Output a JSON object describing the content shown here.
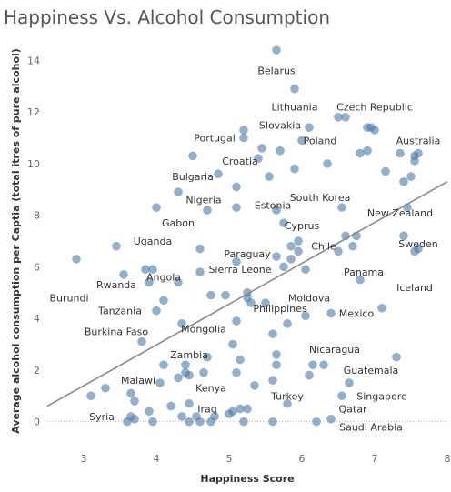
{
  "title": "Happiness Vs. Alcohol Consumption",
  "chart_data": {
    "type": "scatter",
    "title": "Happiness Vs. Alcohol Consumption",
    "xlabel": "Happiness Score",
    "ylabel": "Average alcohol consumption per Captia (total itres of pure alcohol)",
    "xlim": [
      2.5,
      8
    ],
    "ylim": [
      -1,
      15
    ],
    "xticks": [
      "3",
      "4",
      "5",
      "6",
      "7",
      "8"
    ],
    "yticks": [
      "0",
      "2",
      "4",
      "6",
      "8",
      "10",
      "12",
      "14"
    ],
    "grid": false,
    "point_color": "#4e79a7",
    "trendline": {
      "x": [
        2.5,
        8
      ],
      "y": [
        0.6,
        9.3
      ]
    },
    "points": [
      [
        2.9,
        6.3
      ],
      [
        3.1,
        1.0
      ],
      [
        3.3,
        1.3
      ],
      [
        3.45,
        6.8
      ],
      [
        3.55,
        5.7
      ],
      [
        3.6,
        0.0
      ],
      [
        3.65,
        0.2
      ],
      [
        3.7,
        0.8
      ],
      [
        3.65,
        1.1
      ],
      [
        3.7,
        0.1
      ],
      [
        3.8,
        3.1
      ],
      [
        3.85,
        5.9
      ],
      [
        3.9,
        0.4
      ],
      [
        3.9,
        5.4
      ],
      [
        3.95,
        5.9
      ],
      [
        3.95,
        0.0
      ],
      [
        4.0,
        4.3
      ],
      [
        4.0,
        8.3
      ],
      [
        4.05,
        1.5
      ],
      [
        4.1,
        2.2
      ],
      [
        4.1,
        4.7
      ],
      [
        4.2,
        0.6
      ],
      [
        4.3,
        1.7
      ],
      [
        4.3,
        8.9
      ],
      [
        4.3,
        5.4
      ],
      [
        4.35,
        3.8
      ],
      [
        4.35,
        0.2
      ],
      [
        4.4,
        1.9
      ],
      [
        4.4,
        2.2
      ],
      [
        4.45,
        0.7
      ],
      [
        4.45,
        1.8
      ],
      [
        4.45,
        0.0
      ],
      [
        4.5,
        10.3
      ],
      [
        4.55,
        0.2
      ],
      [
        4.6,
        5.8
      ],
      [
        4.6,
        0.0
      ],
      [
        4.6,
        6.7
      ],
      [
        4.65,
        1.9
      ],
      [
        4.7,
        8.2
      ],
      [
        4.7,
        2.5
      ],
      [
        4.75,
        0.0
      ],
      [
        4.75,
        4.9
      ],
      [
        4.8,
        0.2
      ],
      [
        4.85,
        9.6
      ],
      [
        4.95,
        4.9
      ],
      [
        5.0,
        0.3
      ],
      [
        5.05,
        0.4
      ],
      [
        5.05,
        3.0
      ],
      [
        5.1,
        3.9
      ],
      [
        5.1,
        8.3
      ],
      [
        5.1,
        6.2
      ],
      [
        5.1,
        9.1
      ],
      [
        5.1,
        1.9
      ],
      [
        5.15,
        2.4
      ],
      [
        5.15,
        0.5
      ],
      [
        5.2,
        11.0
      ],
      [
        5.2,
        11.3
      ],
      [
        5.2,
        0.0
      ],
      [
        5.25,
        4.8
      ],
      [
        5.25,
        0.5
      ],
      [
        5.25,
        5.0
      ],
      [
        5.3,
        4.6
      ],
      [
        5.35,
        1.4
      ],
      [
        5.4,
        10.2
      ],
      [
        5.45,
        10.6
      ],
      [
        5.5,
        4.6
      ],
      [
        5.55,
        9.5
      ],
      [
        5.6,
        0.0
      ],
      [
        5.6,
        3.4
      ],
      [
        5.6,
        1.6
      ],
      [
        5.65,
        14.4
      ],
      [
        5.65,
        8.2
      ],
      [
        5.65,
        6.4
      ],
      [
        5.65,
        2.2
      ],
      [
        5.65,
        2.6
      ],
      [
        5.7,
        10.5
      ],
      [
        5.75,
        7.7
      ],
      [
        5.75,
        6.0
      ],
      [
        5.8,
        3.8
      ],
      [
        5.8,
        0.7
      ],
      [
        5.85,
        6.3
      ],
      [
        5.85,
        6.8
      ],
      [
        5.9,
        12.9
      ],
      [
        5.9,
        9.8
      ],
      [
        5.95,
        6.6
      ],
      [
        5.95,
        7.0
      ],
      [
        6.0,
        10.9
      ],
      [
        6.05,
        5.9
      ],
      [
        6.05,
        4.1
      ],
      [
        6.1,
        1.8
      ],
      [
        6.1,
        11.4
      ],
      [
        6.15,
        2.2
      ],
      [
        6.2,
        0.0
      ],
      [
        6.3,
        2.2
      ],
      [
        6.35,
        10.0
      ],
      [
        6.4,
        4.2
      ],
      [
        6.4,
        0.1
      ],
      [
        6.5,
        6.6
      ],
      [
        6.5,
        11.8
      ],
      [
        6.55,
        1.0
      ],
      [
        6.55,
        8.3
      ],
      [
        6.6,
        11.8
      ],
      [
        6.6,
        7.2
      ],
      [
        6.65,
        1.5
      ],
      [
        6.7,
        6.8
      ],
      [
        6.75,
        7.2
      ],
      [
        6.8,
        5.5
      ],
      [
        6.8,
        10.4
      ],
      [
        6.9,
        10.5
      ],
      [
        6.9,
        11.4
      ],
      [
        6.95,
        11.4
      ],
      [
        7.0,
        11.3
      ],
      [
        7.1,
        4.4
      ],
      [
        7.15,
        9.7
      ],
      [
        7.3,
        2.5
      ],
      [
        7.35,
        10.4
      ],
      [
        7.4,
        9.3
      ],
      [
        7.4,
        7.2
      ],
      [
        7.45,
        8.3
      ],
      [
        7.5,
        9.5
      ],
      [
        7.55,
        10.1
      ],
      [
        7.55,
        10.3
      ],
      [
        7.6,
        10.4
      ],
      [
        7.6,
        6.7
      ],
      [
        7.55,
        6.6
      ]
    ],
    "annotations": [
      {
        "text": "Belarus",
        "x": 5.65,
        "y": 13.6
      },
      {
        "text": "Lithuania",
        "x": 5.9,
        "y": 12.2
      },
      {
        "text": "Czech Republic",
        "x": 7.0,
        "y": 12.2
      },
      {
        "text": "Slovakia",
        "x": 5.7,
        "y": 11.5
      },
      {
        "text": "Portugal",
        "x": 4.8,
        "y": 11.0
      },
      {
        "text": "Poland",
        "x": 6.25,
        "y": 10.9
      },
      {
        "text": "Australia",
        "x": 7.6,
        "y": 10.9
      },
      {
        "text": "Croatia",
        "x": 5.15,
        "y": 10.1
      },
      {
        "text": "Bulgaria",
        "x": 4.5,
        "y": 9.5
      },
      {
        "text": "South Korea",
        "x": 6.25,
        "y": 8.7
      },
      {
        "text": "Nigeria",
        "x": 4.65,
        "y": 8.6
      },
      {
        "text": "Estonia",
        "x": 5.6,
        "y": 8.4
      },
      {
        "text": "New Zealand",
        "x": 7.35,
        "y": 8.1
      },
      {
        "text": "Gabon",
        "x": 4.3,
        "y": 7.7
      },
      {
        "text": "Cyprus",
        "x": 6.0,
        "y": 7.6
      },
      {
        "text": "Uganda",
        "x": 3.95,
        "y": 7.0
      },
      {
        "text": "Sweden",
        "x": 7.6,
        "y": 6.9
      },
      {
        "text": "Chile",
        "x": 6.3,
        "y": 6.8
      },
      {
        "text": "Paraguay",
        "x": 5.25,
        "y": 6.5
      },
      {
        "text": "Panama",
        "x": 6.85,
        "y": 5.8
      },
      {
        "text": "Sierra Leone",
        "x": 5.15,
        "y": 5.9
      },
      {
        "text": "Angola",
        "x": 4.1,
        "y": 5.6
      },
      {
        "text": "Rwanda",
        "x": 3.45,
        "y": 5.3
      },
      {
        "text": "Iceland",
        "x": 7.55,
        "y": 5.2
      },
      {
        "text": "Burundi",
        "x": 2.8,
        "y": 4.8
      },
      {
        "text": "Moldova",
        "x": 6.1,
        "y": 4.8
      },
      {
        "text": "Tanzania",
        "x": 3.5,
        "y": 4.3
      },
      {
        "text": "Philippines",
        "x": 5.7,
        "y": 4.4
      },
      {
        "text": "Mexico",
        "x": 6.75,
        "y": 4.2
      },
      {
        "text": "Burkina Faso",
        "x": 3.45,
        "y": 3.5
      },
      {
        "text": "Mongolia",
        "x": 4.65,
        "y": 3.6
      },
      {
        "text": "Nicaragua",
        "x": 6.45,
        "y": 2.8
      },
      {
        "text": "Zambia",
        "x": 4.45,
        "y": 2.6
      },
      {
        "text": "Guatemala",
        "x": 6.95,
        "y": 2.0
      },
      {
        "text": "Malawi",
        "x": 3.75,
        "y": 1.6
      },
      {
        "text": "Kenya",
        "x": 4.75,
        "y": 1.3
      },
      {
        "text": "Turkey",
        "x": 5.8,
        "y": 1.0
      },
      {
        "text": "Singapore",
        "x": 7.1,
        "y": 1.0
      },
      {
        "text": "Qatar",
        "x": 6.7,
        "y": 0.5
      },
      {
        "text": "Iraq",
        "x": 4.7,
        "y": 0.5
      },
      {
        "text": "Syria",
        "x": 3.25,
        "y": 0.2
      },
      {
        "text": "Saudi Arabia",
        "x": 6.95,
        "y": -0.2
      }
    ]
  }
}
